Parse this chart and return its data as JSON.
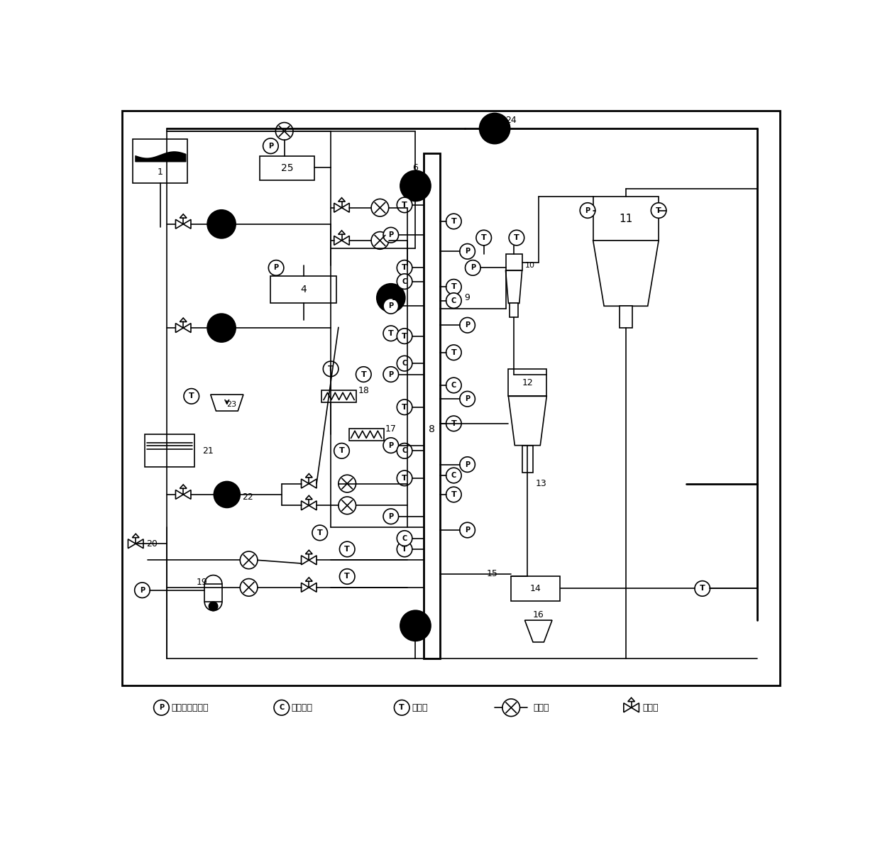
{
  "figsize": [
    12.4,
    11.88
  ],
  "dpi": 100,
  "bg": "#ffffff",
  "lw": 1.2,
  "legend": {
    "P_label": "压力压差传感器",
    "C_label": "电容探针",
    "T_label": "热电偶",
    "flow_label": "流量计",
    "valve_label": "调节阀"
  }
}
